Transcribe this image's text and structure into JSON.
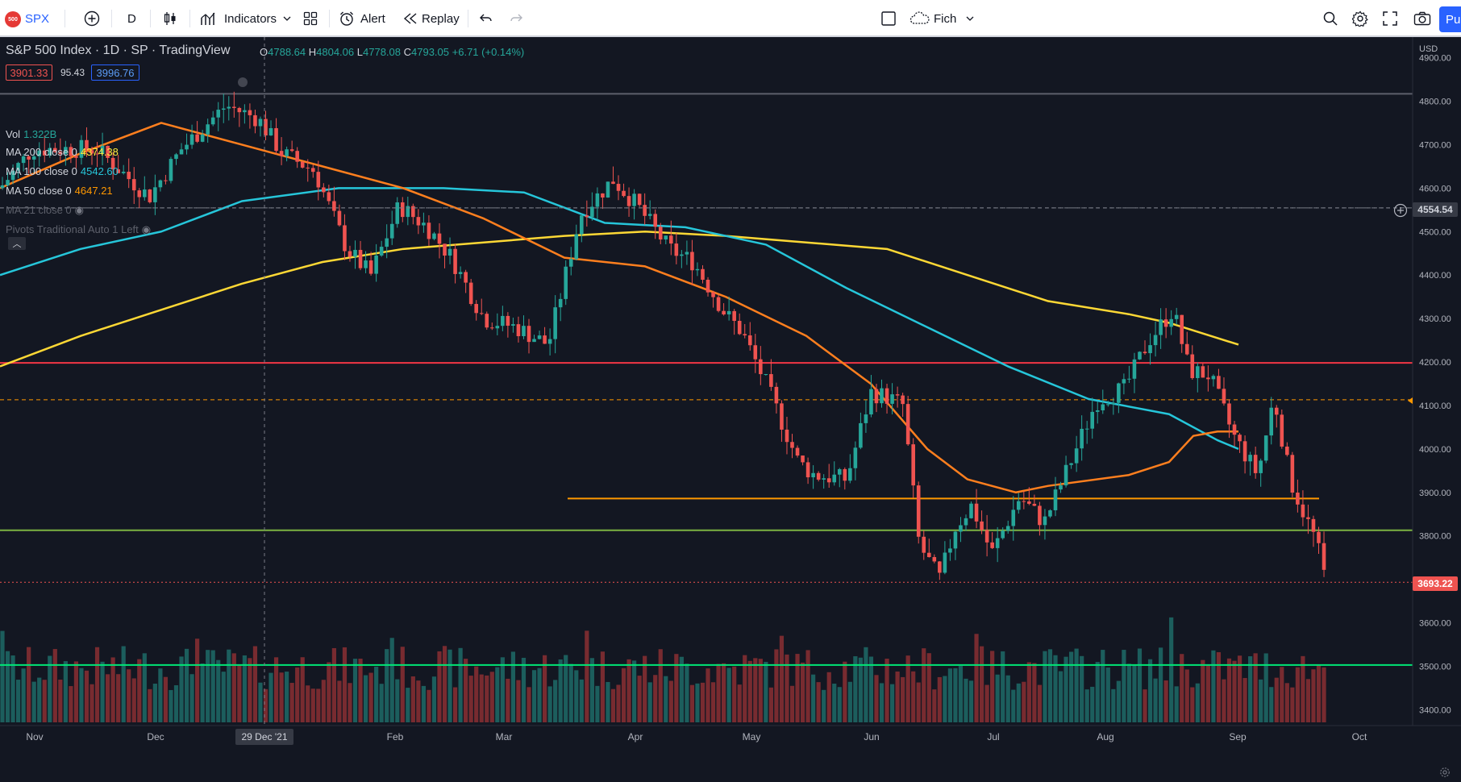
{
  "toolbar": {
    "symbol_logo": "500",
    "symbol": "SPX",
    "interval": "D",
    "indicators_label": "Indicators",
    "alert_label": "Alert",
    "replay_label": "Replay",
    "layout_name": "Fich",
    "publish_label": "Pu"
  },
  "header": {
    "title": "S&P 500 Index · 1D · SP · TradingView",
    "ohlc": {
      "o_label": "O",
      "o": "4788.64",
      "h_label": "H",
      "h": "4804.06",
      "l_label": "L",
      "l": "4778.08",
      "c_label": "C",
      "c": "4793.05",
      "change": "+6.71 (+0.14%)"
    },
    "sell_price": "3901.33",
    "spread": "95.43",
    "buy_price": "3996.76"
  },
  "indicators": [
    {
      "label": "Vol",
      "value": "1.322B",
      "value_color": "#26a69a"
    },
    {
      "label": "MA 200 close 0",
      "value": "4374.38",
      "value_color": "#ffeb3b"
    },
    {
      "label": "MA 100 close 0",
      "value": "4542.60",
      "value_color": "#26c6da"
    },
    {
      "label": "MA 50 close 0",
      "value": "4647.21",
      "value_color": "#ff9800"
    },
    {
      "label": "MA 21 close 0",
      "value": "",
      "value_color": "#787b86"
    },
    {
      "label": "Pivots Traditional Auto 1 Left",
      "value": "",
      "value_color": "#787b86"
    }
  ],
  "price_axis": {
    "currency": "USD",
    "ticks": [
      "4900.00",
      "4800.00",
      "4700.00",
      "4600.00",
      "4500.00",
      "4400.00",
      "4300.00",
      "4200.00",
      "4100.00",
      "4000.00",
      "3900.00",
      "3800.00",
      "3700.00",
      "3600.00",
      "3500.00",
      "3400.00"
    ],
    "crosshair_price": "4554.54",
    "last_price": "3693.22"
  },
  "time_axis": {
    "labels": [
      "Nov",
      "Dec",
      "Feb",
      "Mar",
      "Apr",
      "May",
      "Jun",
      "Jul",
      "Aug",
      "Sep",
      "Oct"
    ],
    "crosshair_date": "29 Dec '21"
  },
  "colors": {
    "background": "#131722",
    "up": "#26a69a",
    "down": "#ef5350",
    "ma200": "#fdd835",
    "ma100": "#26c6da",
    "ma50": "#ff7f1e",
    "level_red": "#f23645",
    "level_orange": "#ff9800",
    "level_green": "#7cb342",
    "level_bright_green": "#00e676",
    "grid_gray": "#5d606b"
  },
  "chart_data": {
    "type": "candlestick",
    "y_range": [
      3380,
      4915
    ],
    "horizontal_levels": [
      {
        "price": 4817,
        "color": "#5d606b",
        "style": "solid"
      },
      {
        "price": 4554.54,
        "color": "#787b86",
        "style": "dashed"
      },
      {
        "price": 4198,
        "color": "#f23645",
        "style": "solid"
      },
      {
        "price": 4113,
        "color": "#ff9800",
        "style": "dashed"
      },
      {
        "price": 3886,
        "color": "#ff9800",
        "style": "solid",
        "segment": true
      },
      {
        "price": 3813,
        "color": "#7cb342",
        "style": "solid"
      },
      {
        "price": 3693.22,
        "color": "#ef5350",
        "style": "dotted"
      },
      {
        "price": 3503,
        "color": "#00e676",
        "style": "solid"
      }
    ],
    "ma50": [
      [
        0,
        4600
      ],
      [
        100,
        4680
      ],
      [
        200,
        4750
      ],
      [
        300,
        4700
      ],
      [
        400,
        4650
      ],
      [
        500,
        4600
      ],
      [
        600,
        4530
      ],
      [
        700,
        4440
      ],
      [
        800,
        4420
      ],
      [
        900,
        4350
      ],
      [
        1000,
        4260
      ],
      [
        1080,
        4150
      ],
      [
        1150,
        4000
      ],
      [
        1200,
        3930
      ],
      [
        1260,
        3900
      ],
      [
        1300,
        3915
      ],
      [
        1400,
        3940
      ],
      [
        1450,
        3970
      ],
      [
        1480,
        4030
      ],
      [
        1510,
        4040
      ],
      [
        1536,
        4040
      ]
    ],
    "ma100": [
      [
        0,
        4400
      ],
      [
        100,
        4460
      ],
      [
        200,
        4500
      ],
      [
        300,
        4570
      ],
      [
        420,
        4600
      ],
      [
        550,
        4600
      ],
      [
        650,
        4590
      ],
      [
        750,
        4520
      ],
      [
        850,
        4510
      ],
      [
        950,
        4470
      ],
      [
        1050,
        4370
      ],
      [
        1150,
        4280
      ],
      [
        1250,
        4190
      ],
      [
        1350,
        4115
      ],
      [
        1450,
        4080
      ],
      [
        1510,
        4020
      ],
      [
        1536,
        4000
      ]
    ],
    "ma200": [
      [
        0,
        4190
      ],
      [
        100,
        4260
      ],
      [
        200,
        4320
      ],
      [
        300,
        4380
      ],
      [
        400,
        4430
      ],
      [
        500,
        4460
      ],
      [
        600,
        4475
      ],
      [
        700,
        4490
      ],
      [
        800,
        4500
      ],
      [
        900,
        4490
      ],
      [
        1000,
        4475
      ],
      [
        1100,
        4460
      ],
      [
        1200,
        4400
      ],
      [
        1300,
        4340
      ],
      [
        1400,
        4310
      ],
      [
        1450,
        4290
      ],
      [
        1536,
        4240
      ]
    ]
  }
}
